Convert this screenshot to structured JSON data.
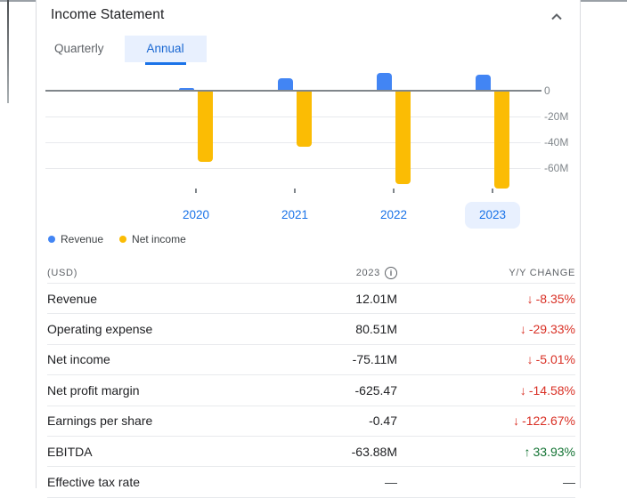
{
  "panel": {
    "title": "Income Statement",
    "collapse_icon": "chevron-up-icon"
  },
  "tabs": [
    {
      "label": "Quarterly",
      "active": false
    },
    {
      "label": "Annual",
      "active": true
    }
  ],
  "chart_data": {
    "type": "bar",
    "unit": "USD millions",
    "categories": [
      "2020",
      "2021",
      "2022",
      "2023"
    ],
    "selected_category": "2023",
    "series": [
      {
        "name": "Revenue",
        "color": "#4285F4",
        "values": [
          1.3,
          8.7,
          13.1,
          12.01
        ]
      },
      {
        "name": "Net income",
        "color": "#FBBC04",
        "values": [
          -54.3,
          -43.0,
          -71.5,
          -75.11
        ]
      }
    ],
    "y_ticks": [
      {
        "value": 0,
        "label": "0"
      },
      {
        "value": -20,
        "label": "-20M"
      },
      {
        "value": -40,
        "label": "-40M"
      },
      {
        "value": -60,
        "label": "-60M"
      }
    ],
    "ylim": [
      -80,
      16
    ],
    "grid": true,
    "legend_position": "bottom-left"
  },
  "legend": [
    {
      "label": "Revenue",
      "color": "#4285F4"
    },
    {
      "label": "Net income",
      "color": "#FBBC04"
    }
  ],
  "table": {
    "header": {
      "currency": "(USD)",
      "year": "2023",
      "info_icon": "info-icon",
      "change": "Y/Y CHANGE"
    },
    "arrow_glyphs": {
      "down": "↓",
      "up": "↑",
      "none": ""
    },
    "rows": [
      {
        "label": "Revenue",
        "value": "12.01M",
        "change": "-8.35%",
        "direction": "down"
      },
      {
        "label": "Operating expense",
        "value": "80.51M",
        "change": "-29.33%",
        "direction": "down"
      },
      {
        "label": "Net income",
        "value": "-75.11M",
        "change": "-5.01%",
        "direction": "down"
      },
      {
        "label": "Net profit margin",
        "value": "-625.47",
        "change": "-14.58%",
        "direction": "down"
      },
      {
        "label": "Earnings per share",
        "value": "-0.47",
        "change": "-122.67%",
        "direction": "down"
      },
      {
        "label": "EBITDA",
        "value": "-63.88M",
        "change": "33.93%",
        "direction": "up"
      },
      {
        "label": "Effective tax rate",
        "value": "—",
        "change": "—",
        "direction": "none"
      }
    ]
  },
  "colors": {
    "accent_blue": "#1a73e8",
    "tab_active_text": "#1967d2",
    "tab_active_bg": "#e8f0fe",
    "selected_year_bg": "#e8f0fe",
    "revenue_bar": "#4285F4",
    "net_income_bar": "#FBBC04",
    "negative": "#d93025",
    "positive": "#137333",
    "axis_line": "#80868b",
    "gridline": "#e8eaed",
    "row_border": "#e8eaed",
    "card_border": "#dadce0",
    "muted_text": "#5f6368"
  }
}
